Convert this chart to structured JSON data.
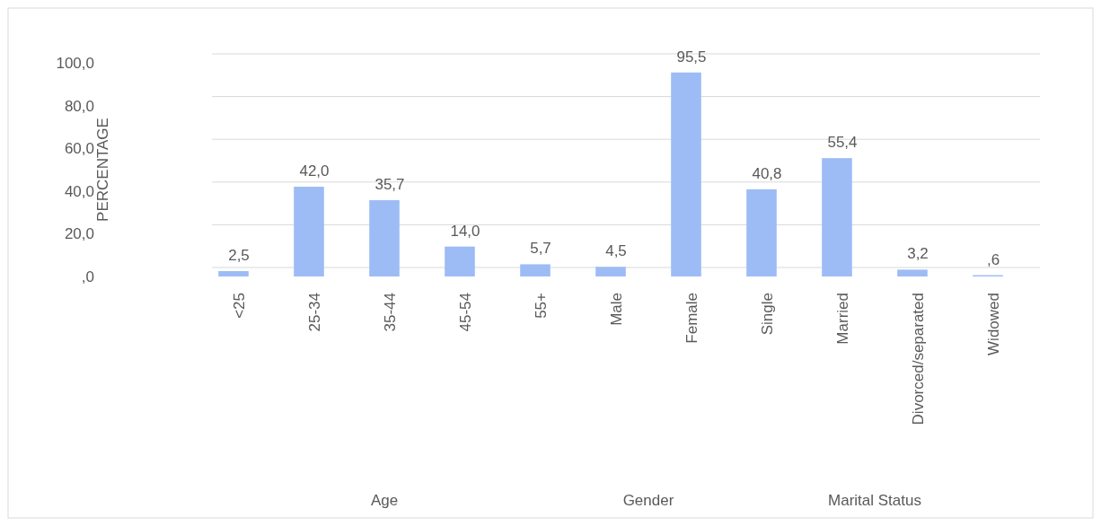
{
  "chart_data": {
    "type": "bar",
    "ylabel": "PERCENTAGE",
    "categories": [
      "<25",
      "25-34",
      "35-44",
      "45-54",
      "55+",
      "Male",
      "Female",
      "Single",
      "Married",
      "Divorced/separated",
      "Widowed"
    ],
    "values": [
      2.5,
      42.0,
      35.7,
      14.0,
      5.7,
      4.5,
      95.5,
      40.8,
      55.4,
      3.2,
      0.6
    ],
    "value_labels": [
      "2,5",
      "42,0",
      "35,7",
      "14,0",
      "5,7",
      "4,5",
      "95,5",
      "40,8",
      "55,4",
      "3,2",
      null
    ],
    "color": "#9dbcf5",
    "ylim": [
      0,
      100
    ],
    "yticks": [
      {
        "value": 0,
        "label": ",0"
      },
      {
        "value": 20,
        "label": "20,0"
      },
      {
        "value": 40,
        "label": "40,0"
      },
      {
        "value": 60,
        "label": "60,0"
      },
      {
        "value": 80,
        "label": "80,0"
      },
      {
        "value": 100,
        "label": "100,0"
      }
    ],
    "grid": "y",
    "annotations": [
      "Age",
      "Gender",
      "Marital Status",
      {
        "text": ",6",
        "x": "Widowed",
        "y": 0.6
      }
    ]
  }
}
